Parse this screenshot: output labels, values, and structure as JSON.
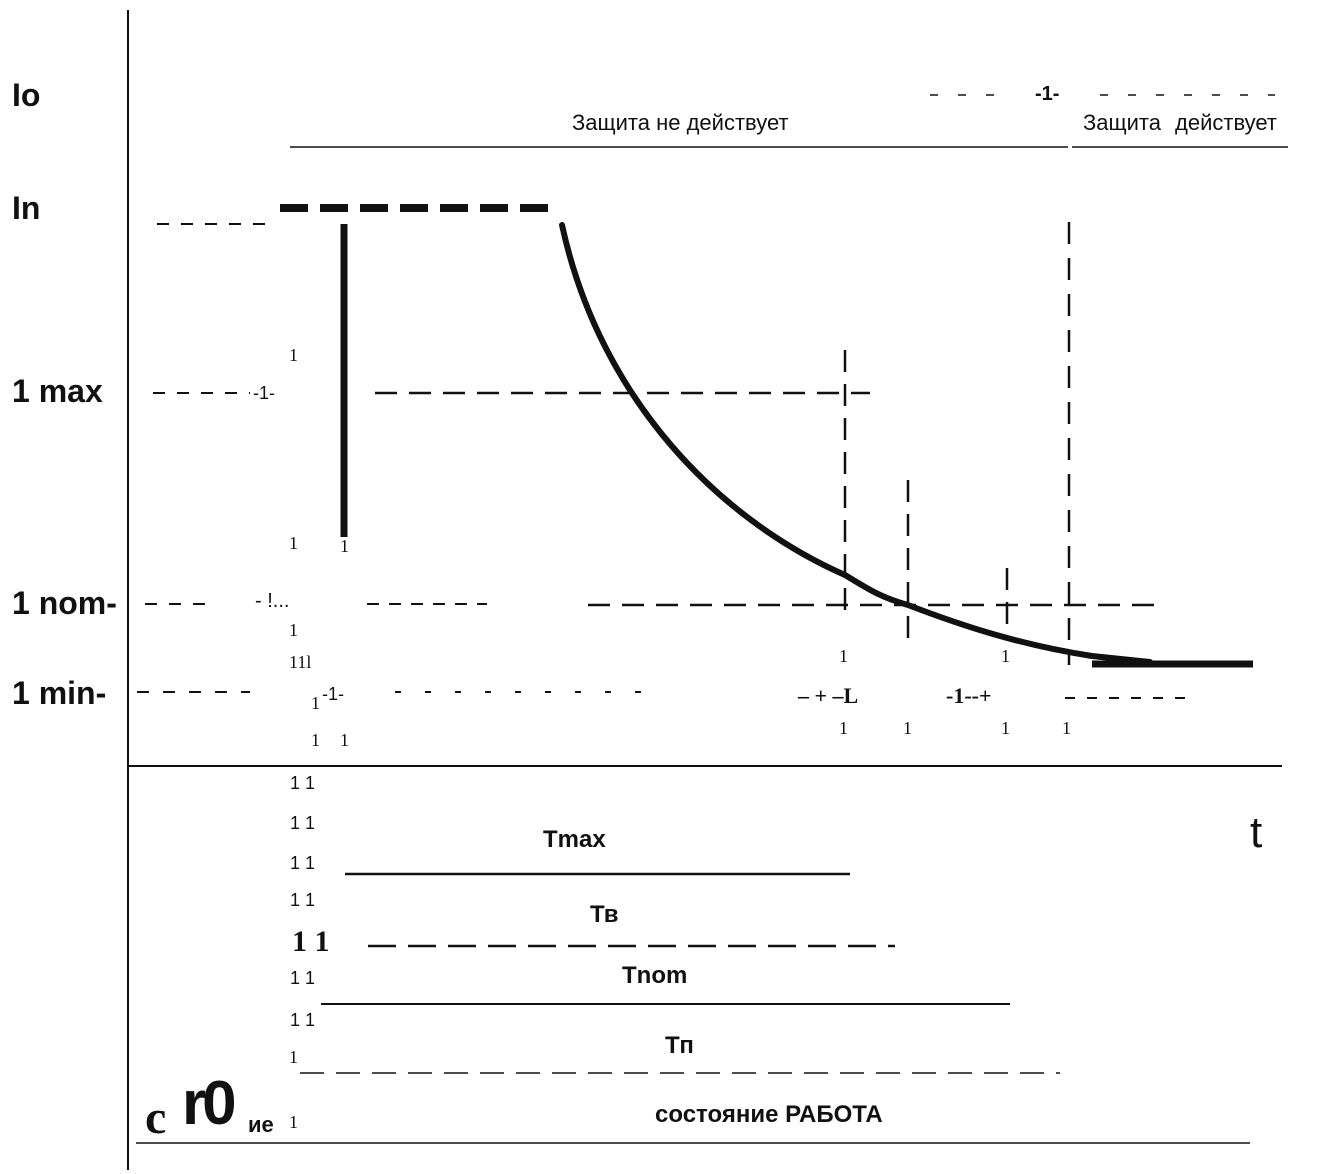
{
  "y_axis_labels": {
    "io": "Io",
    "in": "In",
    "max": "1 max",
    "nom": "1 nom-",
    "min": "1 min-"
  },
  "t_axis_label": "t",
  "zones": {
    "inactive": "Защита не действует",
    "active_part1": "Защита",
    "active_part2": "действует"
  },
  "periods": {
    "tmax": "Tmax",
    "tv": "Тв",
    "tnom": "Tnom",
    "tp": "Тп"
  },
  "state_label": "состояние РАБОТА",
  "state_prefix": {
    "c": "c",
    "r0": "r0",
    "ie": "ие"
  },
  "artifacts": {
    "io_mark": "-1-",
    "one": "1",
    "max_mark": "-1-",
    "nom_mark": "- !...",
    "one_one_one": "11l",
    "min_mark_a": "1",
    "min_mark_b": "-1-",
    "min_right_a": "– + –L",
    "min_right_b": "-1--+",
    "eleven": "1 1",
    "eleven_big": "1 1"
  },
  "colors": {
    "ink": "#111111",
    "background": "#ffffff"
  }
}
